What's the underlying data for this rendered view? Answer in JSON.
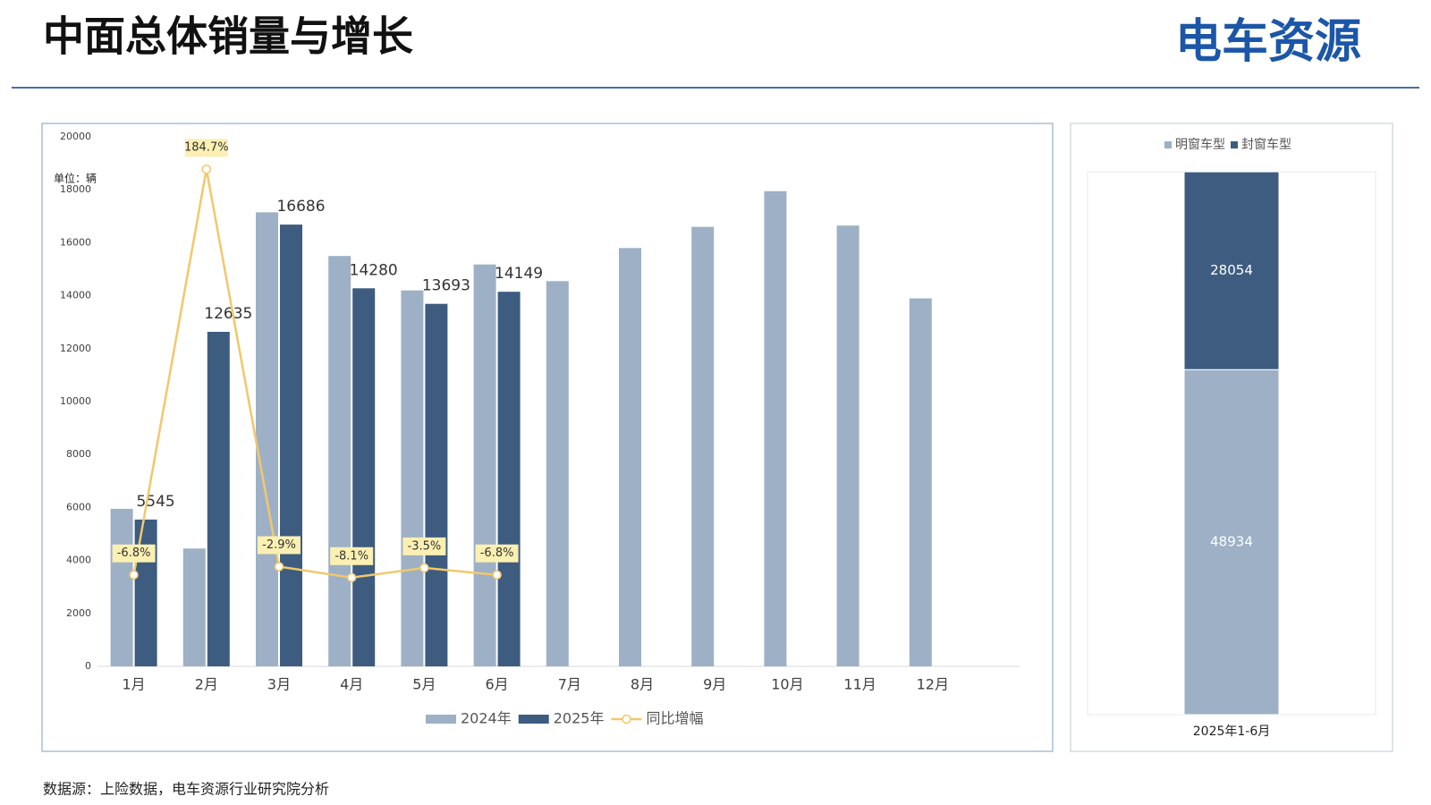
{
  "header": {
    "title": "中面总体销量与增长",
    "logo": "电车资源"
  },
  "source": "数据源：上险数据，电车资源行业研究院分析",
  "chart_data": [
    {
      "type": "bar",
      "unit": "单位：辆",
      "categories": [
        "1月",
        "2月",
        "3月",
        "4月",
        "5月",
        "6月",
        "7月",
        "8月",
        "9月",
        "10月",
        "11月",
        "12月"
      ],
      "series": [
        {
          "name": "2024年",
          "color": "#9db0c6",
          "values": [
            5950,
            4450,
            17150,
            15500,
            14200,
            15180,
            14550,
            15800,
            16600,
            17950,
            16650,
            13900
          ]
        },
        {
          "name": "2025年",
          "color": "#3d5c80",
          "data_labels": true,
          "values": [
            5545,
            12635,
            16686,
            14280,
            13693,
            14149,
            null,
            null,
            null,
            null,
            null,
            null
          ]
        },
        {
          "name": "同比增幅",
          "type": "line",
          "axis": "y2",
          "color": "#f2c86a",
          "data_labels": true,
          "values": [
            -6.8,
            184.7,
            -2.9,
            -8.1,
            -3.5,
            -6.8,
            null,
            null,
            null,
            null,
            null,
            null
          ],
          "value_labels": [
            "-6.8%",
            "184.7%",
            "-2.9%",
            "-8.1%",
            "-3.5%",
            "-6.8%",
            null,
            null,
            null,
            null,
            null,
            null
          ]
        }
      ],
      "ylim": [
        0,
        20000
      ],
      "yticks": [
        0,
        2000,
        4000,
        6000,
        8000,
        10000,
        12000,
        14000,
        16000,
        18000,
        20000
      ],
      "y2lim": [
        -50,
        200
      ],
      "grid": false,
      "legend": "bottom"
    },
    {
      "type": "stacked_bar",
      "categories": [
        "2025年1-6月"
      ],
      "series": [
        {
          "name": "明窗车型",
          "color": "#9db0c6",
          "values": [
            48934
          ]
        },
        {
          "name": "封窗车型",
          "color": "#3d5c80",
          "values": [
            28054
          ]
        }
      ],
      "ylim": [
        0,
        77000
      ],
      "legend": "top"
    }
  ]
}
